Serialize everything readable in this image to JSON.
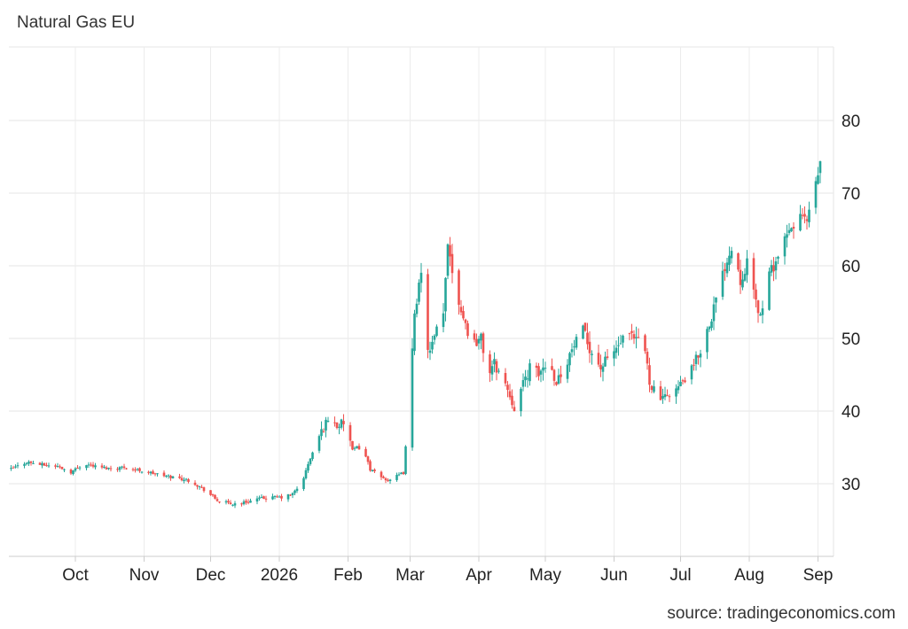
{
  "chart_data": {
    "type": "candlestick",
    "title": "Natural Gas EU",
    "source": "source: tradingeconomics.com",
    "y_ticks": [
      30,
      40,
      50,
      60,
      70,
      80
    ],
    "ylim": [
      20,
      90
    ],
    "grid": true,
    "x_tick_labels": [
      {
        "label": "Oct",
        "day": 30
      },
      {
        "label": "Nov",
        "day": 61
      },
      {
        "label": "Dec",
        "day": 91
      },
      {
        "label": "2026",
        "day": 122
      },
      {
        "label": "Feb",
        "day": 153
      },
      {
        "label": "Mar",
        "day": 181
      },
      {
        "label": "Apr",
        "day": 212
      },
      {
        "label": "May",
        "day": 242
      },
      {
        "label": "Jun",
        "day": 273
      },
      {
        "label": "Jul",
        "day": 303
      },
      {
        "label": "Aug",
        "day": 334
      },
      {
        "label": "Sep",
        "day": 365
      }
    ],
    "up_color": "#26a69a",
    "down_color": "#ef5350",
    "close_series": [
      [
        1,
        32.0
      ],
      [
        8,
        33.0
      ],
      [
        15,
        32.6
      ],
      [
        22,
        32.4
      ],
      [
        28,
        31.6
      ],
      [
        34,
        32.8
      ],
      [
        40,
        32.3
      ],
      [
        46,
        32.1
      ],
      [
        52,
        32.3
      ],
      [
        58,
        31.9
      ],
      [
        64,
        31.5
      ],
      [
        70,
        31.1
      ],
      [
        76,
        30.8
      ],
      [
        82,
        30.4
      ],
      [
        88,
        29.2
      ],
      [
        94,
        27.7
      ],
      [
        100,
        27.2
      ],
      [
        106,
        27.4
      ],
      [
        112,
        27.9
      ],
      [
        118,
        28.1
      ],
      [
        124,
        28.1
      ],
      [
        128,
        28.6
      ],
      [
        132,
        30.0
      ],
      [
        136,
        33.5
      ],
      [
        140,
        36.5
      ],
      [
        144,
        39.0
      ],
      [
        148,
        38.0
      ],
      [
        152,
        38.5
      ],
      [
        155,
        34.5
      ],
      [
        159,
        35.5
      ],
      [
        163,
        32.0
      ],
      [
        167,
        31.0
      ],
      [
        171,
        30.5
      ],
      [
        175,
        31.0
      ],
      [
        178,
        31.5
      ],
      [
        181,
        42.0
      ],
      [
        183,
        54.0
      ],
      [
        186,
        58.5
      ],
      [
        188,
        50.0
      ],
      [
        190,
        48.0
      ],
      [
        193,
        51.0
      ],
      [
        196,
        53.0
      ],
      [
        198,
        63.5
      ],
      [
        201,
        57.5
      ],
      [
        204,
        54.0
      ],
      [
        207,
        51.0
      ],
      [
        210,
        49.5
      ],
      [
        213,
        50.0
      ],
      [
        216,
        45.0
      ],
      [
        219,
        46.5
      ],
      [
        222,
        45.0
      ],
      [
        225,
        43.0
      ],
      [
        228,
        40.5
      ],
      [
        231,
        43.0
      ],
      [
        235,
        46.0
      ],
      [
        239,
        45.0
      ],
      [
        243,
        47.0
      ],
      [
        247,
        44.0
      ],
      [
        251,
        46.5
      ],
      [
        255,
        49.0
      ],
      [
        259,
        51.0
      ],
      [
        263,
        48.0
      ],
      [
        267,
        46.0
      ],
      [
        271,
        47.5
      ],
      [
        275,
        49.0
      ],
      [
        279,
        50.5
      ],
      [
        283,
        49.5
      ],
      [
        286,
        50.5
      ],
      [
        289,
        44.0
      ],
      [
        292,
        42.5
      ],
      [
        295,
        41.5
      ],
      [
        298,
        42.5
      ],
      [
        301,
        43.0
      ],
      [
        304,
        44.0
      ],
      [
        308,
        45.5
      ],
      [
        312,
        48.5
      ],
      [
        316,
        52.0
      ],
      [
        320,
        56.5
      ],
      [
        324,
        61.0
      ],
      [
        327,
        63.0
      ],
      [
        330,
        58.0
      ],
      [
        333,
        60.5
      ],
      [
        336,
        56.0
      ],
      [
        339,
        53.0
      ],
      [
        342,
        58.0
      ],
      [
        345,
        60.0
      ],
      [
        348,
        62.0
      ],
      [
        351,
        64.0
      ],
      [
        354,
        65.5
      ],
      [
        357,
        67.0
      ],
      [
        360,
        66.0
      ],
      [
        363,
        69.5
      ],
      [
        366,
        74.0
      ]
    ]
  }
}
